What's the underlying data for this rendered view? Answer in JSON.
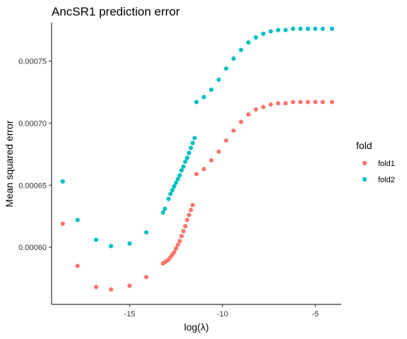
{
  "chart_data": {
    "type": "scatter",
    "title": "AncSR1 prediction error",
    "xlabel": "log(λ)",
    "ylabel": "Mean squared error",
    "xlim": [
      -19.2,
      -3.6
    ],
    "ylim": [
      0.000554,
      0.000781
    ],
    "x_ticks": [
      -15,
      -10,
      -5
    ],
    "x_tick_labels": [
      "-15",
      "-10",
      "-5"
    ],
    "y_ticks": [
      0.0006,
      0.00065,
      0.0007,
      0.00075
    ],
    "y_tick_labels": [
      "0.00060",
      "0.00065",
      "0.00070",
      "0.00075"
    ],
    "grid": false,
    "legend": {
      "title": "fold",
      "position": "right",
      "entries": [
        {
          "label": "fold1",
          "color": "#F8766D"
        },
        {
          "label": "fold2",
          "color": "#00BFC4"
        }
      ]
    },
    "series": [
      {
        "name": "fold1",
        "color": "#F8766D",
        "points": [
          [
            -18.6,
            0.000619
          ],
          [
            -17.8,
            0.000585
          ],
          [
            -16.8,
            0.000568
          ],
          [
            -16.0,
            0.000566
          ],
          [
            -15.0,
            0.000569
          ],
          [
            -14.1,
            0.000576
          ],
          [
            -13.2,
            0.000587
          ],
          [
            -13.1,
            0.000588
          ],
          [
            -13.0,
            0.000589
          ],
          [
            -12.9,
            0.00059
          ],
          [
            -12.8,
            0.000592
          ],
          [
            -12.7,
            0.000594
          ],
          [
            -12.6,
            0.000596
          ],
          [
            -12.5,
            0.000599
          ],
          [
            -12.4,
            0.000602
          ],
          [
            -12.3,
            0.000605
          ],
          [
            -12.2,
            0.000609
          ],
          [
            -12.1,
            0.000613
          ],
          [
            -12.0,
            0.000617
          ],
          [
            -11.9,
            0.000622
          ],
          [
            -11.8,
            0.000626
          ],
          [
            -11.7,
            0.00063
          ],
          [
            -11.6,
            0.000634
          ],
          [
            -11.4,
            0.000659
          ],
          [
            -11.0,
            0.000663
          ],
          [
            -10.6,
            0.00067
          ],
          [
            -10.2,
            0.000677
          ],
          [
            -9.8,
            0.000686
          ],
          [
            -9.4,
            0.000694
          ],
          [
            -9.0,
            0.000701
          ],
          [
            -8.6,
            0.000707
          ],
          [
            -8.2,
            0.000711
          ],
          [
            -7.8,
            0.000713
          ],
          [
            -7.4,
            0.000715
          ],
          [
            -7.0,
            0.000716
          ],
          [
            -6.6,
            0.000716
          ],
          [
            -6.2,
            0.000717
          ],
          [
            -5.8,
            0.000717
          ],
          [
            -5.4,
            0.000717
          ],
          [
            -5.0,
            0.000717
          ],
          [
            -4.6,
            0.000717
          ],
          [
            -4.1,
            0.000717
          ]
        ]
      },
      {
        "name": "fold2",
        "color": "#00BFC4",
        "points": [
          [
            -18.6,
            0.000653
          ],
          [
            -17.8,
            0.000622
          ],
          [
            -16.8,
            0.000606
          ],
          [
            -16.0,
            0.000601
          ],
          [
            -15.0,
            0.000603
          ],
          [
            -14.1,
            0.000612
          ],
          [
            -13.2,
            0.000628
          ],
          [
            -13.1,
            0.000631
          ],
          [
            -12.9,
            0.000639
          ],
          [
            -12.8,
            0.000643
          ],
          [
            -12.7,
            0.000646
          ],
          [
            -12.6,
            0.000649
          ],
          [
            -12.5,
            0.000652
          ],
          [
            -12.4,
            0.000655
          ],
          [
            -12.3,
            0.000658
          ],
          [
            -12.2,
            0.000662
          ],
          [
            -12.1,
            0.000665
          ],
          [
            -12.0,
            0.000669
          ],
          [
            -11.9,
            0.000672
          ],
          [
            -11.8,
            0.000676
          ],
          [
            -11.7,
            0.00068
          ],
          [
            -11.6,
            0.000684
          ],
          [
            -11.5,
            0.000688
          ],
          [
            -11.4,
            0.000717
          ],
          [
            -11.0,
            0.000721
          ],
          [
            -10.6,
            0.000727
          ],
          [
            -10.2,
            0.000735
          ],
          [
            -9.8,
            0.000744
          ],
          [
            -9.4,
            0.000752
          ],
          [
            -9.0,
            0.000759
          ],
          [
            -8.6,
            0.000765
          ],
          [
            -8.2,
            0.000769
          ],
          [
            -7.8,
            0.000772
          ],
          [
            -7.4,
            0.000774
          ],
          [
            -7.0,
            0.000775
          ],
          [
            -6.6,
            0.000775
          ],
          [
            -6.2,
            0.000776
          ],
          [
            -5.8,
            0.000776
          ],
          [
            -5.4,
            0.000776
          ],
          [
            -5.0,
            0.000776
          ],
          [
            -4.6,
            0.000776
          ],
          [
            -4.1,
            0.000776
          ]
        ]
      }
    ]
  }
}
